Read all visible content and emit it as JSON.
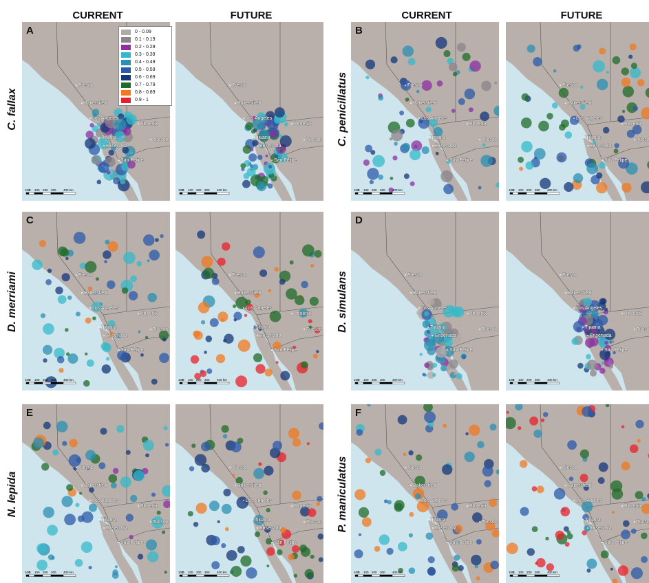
{
  "columns": [
    "CURRENT",
    "FUTURE",
    "CURRENT",
    "FUTURE"
  ],
  "species": [
    "C. fallax",
    "C. penicillatus",
    "D. merriami",
    "D. simulans",
    "N. lepida",
    "P. maniculatus"
  ],
  "panel_letters": [
    "A",
    "B",
    "C",
    "D",
    "E",
    "F"
  ],
  "cities": [
    "Fresno",
    "Bakersfield",
    "Los Angeles",
    "Tijuana",
    "Ensenada",
    "San Felipe",
    "Phoenix",
    "Tucson"
  ],
  "scale": {
    "ticks": [
      "100",
      "0",
      "100",
      "200",
      "300",
      "400 km"
    ]
  },
  "legend": [
    {
      "label": "0 - 0.09",
      "color": "#b3a9a4"
    },
    {
      "label": "0.1 - 0.19",
      "color": "#8b8489"
    },
    {
      "label": "0.2 - 0.29",
      "color": "#8e2fa0"
    },
    {
      "label": "0.3 - 0.39",
      "color": "#35b9c9"
    },
    {
      "label": "0.4 - 0.49",
      "color": "#2a8fb2"
    },
    {
      "label": "0.5 - 0.59",
      "color": "#2b5aa8"
    },
    {
      "label": "0.6 - 0.69",
      "color": "#14377a"
    },
    {
      "label": "0.7 - 0.79",
      "color": "#1f6b2a"
    },
    {
      "label": "0.8 - 0.89",
      "color": "#f07820"
    },
    {
      "label": "0.9 - 1",
      "color": "#e8202a"
    }
  ],
  "colors": {
    "ocean": "#cfe5ee",
    "land": "#b9b0ab",
    "border": "#555555"
  }
}
